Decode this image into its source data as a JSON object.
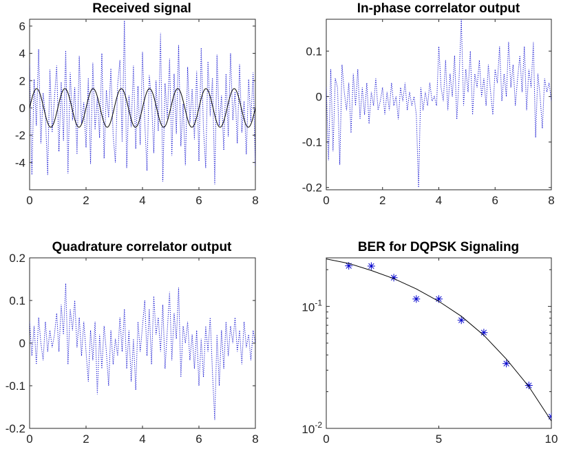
{
  "figure": {
    "background": "#ffffff",
    "trace_color": "#0000cc",
    "curve_color": "#000000"
  },
  "chart_data": [
    {
      "type": "line",
      "title": "Received signal",
      "xlim": [
        0,
        8
      ],
      "ylim": [
        -6,
        6.5
      ],
      "xticks": [
        "0",
        "2",
        "4",
        "6",
        "8"
      ],
      "yticks": [
        "-4",
        "-2",
        "0",
        "2",
        "4",
        "6"
      ],
      "series": [
        {
          "style": "dotted",
          "color": "#0000cc",
          "x": [
            0,
            0.08,
            0.16,
            0.24,
            0.32,
            0.4,
            0.48,
            0.56,
            0.64,
            0.72,
            0.8,
            0.88,
            0.96,
            1.04,
            1.12,
            1.2,
            1.28,
            1.36,
            1.44,
            1.52,
            1.6,
            1.68,
            1.76,
            1.84,
            1.92,
            2,
            2.08,
            2.16,
            2.24,
            2.32,
            2.4,
            2.48,
            2.56,
            2.64,
            2.72,
            2.8,
            2.88,
            2.96,
            3.04,
            3.12,
            3.2,
            3.28,
            3.36,
            3.44,
            3.52,
            3.6,
            3.68,
            3.76,
            3.84,
            3.92,
            4,
            4.08,
            4.16,
            4.24,
            4.32,
            4.4,
            4.48,
            4.56,
            4.64,
            4.72,
            4.8,
            4.88,
            4.96,
            5.04,
            5.12,
            5.2,
            5.28,
            5.36,
            5.44,
            5.52,
            5.6,
            5.68,
            5.76,
            5.84,
            5.92,
            6,
            6.08,
            6.16,
            6.24,
            6.32,
            6.4,
            6.48,
            6.56,
            6.64,
            6.72,
            6.8,
            6.88,
            6.96,
            7.04,
            7.12,
            7.2,
            7.28,
            7.36,
            7.44,
            7.52,
            7.6,
            7.68,
            7.76,
            7.84,
            7.92,
            8
          ],
          "y": [
            3.2,
            -4.9,
            2.1,
            -1.3,
            4.3,
            -2.6,
            1.1,
            -0.5,
            -4.9,
            2.8,
            -1.8,
            0.7,
            3.1,
            -3.2,
            1.9,
            -2.4,
            4.2,
            -4.8,
            2.6,
            -0.9,
            1.5,
            -3.4,
            3.8,
            -1.2,
            0.4,
            -2.9,
            2.2,
            -4.1,
            3.3,
            -1.6,
            0.8,
            -2.2,
            4.0,
            -3.7,
            1.3,
            -0.7,
            2.9,
            -2.0,
            -4.0,
            1.7,
            3.5,
            -2.5,
            6.4,
            -4.4,
            0.9,
            -1.4,
            3.1,
            -3.0,
            1.6,
            -2.7,
            4.1,
            -1.0,
            -4.6,
            2.4,
            0.6,
            -3.3,
            2.0,
            -1.7,
            5.5,
            -5.4,
            1.8,
            -0.8,
            3.6,
            -3.5,
            2.5,
            -1.9,
            4.6,
            -2.8,
            0.3,
            -4.2,
            3.0,
            -1.1,
            1.4,
            -2.3,
            2.7,
            -3.9,
            4.4,
            -1.5,
            -4.4,
            3.4,
            -0.6,
            2.2,
            -5.6,
            3.9,
            -1.3,
            0.9,
            -3.1,
            2.5,
            -2.1,
            4.0,
            -0.9,
            1.2,
            -2.6,
            3.2,
            -1.8,
            0.5,
            -3.4,
            2.1,
            -1.0,
            2.6,
            -4.3
          ]
        },
        {
          "style": "solid",
          "color": "#000000",
          "function": "1.414*sin(2*pi*t)",
          "x_range": [
            0,
            8
          ]
        }
      ]
    },
    {
      "type": "line",
      "title": "In-phase correlator output",
      "xlim": [
        0,
        8
      ],
      "ylim": [
        -0.205,
        0.17
      ],
      "xticks": [
        "0",
        "2",
        "4",
        "6",
        "8"
      ],
      "yticks": [
        "-0.2",
        "-0.1",
        "0",
        "0.1"
      ],
      "series": [
        {
          "style": "dotted",
          "color": "#0000cc",
          "x": [
            0,
            0.08,
            0.16,
            0.24,
            0.32,
            0.4,
            0.48,
            0.56,
            0.64,
            0.72,
            0.8,
            0.88,
            0.96,
            1.04,
            1.12,
            1.2,
            1.28,
            1.36,
            1.44,
            1.52,
            1.6,
            1.68,
            1.76,
            1.84,
            1.92,
            2,
            2.08,
            2.16,
            2.24,
            2.32,
            2.4,
            2.48,
            2.56,
            2.64,
            2.72,
            2.8,
            2.88,
            2.96,
            3.04,
            3.12,
            3.2,
            3.28,
            3.36,
            3.44,
            3.52,
            3.6,
            3.68,
            3.76,
            3.84,
            3.92,
            4,
            4.08,
            4.16,
            4.24,
            4.32,
            4.4,
            4.48,
            4.56,
            4.64,
            4.72,
            4.8,
            4.88,
            4.96,
            5.04,
            5.12,
            5.2,
            5.28,
            5.36,
            5.44,
            5.52,
            5.6,
            5.68,
            5.76,
            5.84,
            5.92,
            6,
            6.08,
            6.16,
            6.24,
            6.32,
            6.4,
            6.48,
            6.56,
            6.64,
            6.72,
            6.8,
            6.88,
            6.96,
            7.04,
            7.12,
            7.2,
            7.28,
            7.36,
            7.44,
            7.52,
            7.6,
            7.68,
            7.76,
            7.84,
            7.92,
            8
          ],
          "y": [
            0.02,
            -0.14,
            0.06,
            -0.12,
            0.04,
            0.02,
            -0.15,
            0.07,
            0.01,
            -0.03,
            0.03,
            -0.08,
            0.05,
            -0.02,
            0.06,
            -0.05,
            0.02,
            -0.04,
            0.03,
            -0.06,
            0.01,
            -0.02,
            0.04,
            -0.03,
            -0.01,
            0.02,
            -0.04,
            0.01,
            -0.03,
            0.03,
            -0.02,
            0.0,
            -0.05,
            0.02,
            -0.01,
            0.03,
            -0.03,
            0.01,
            -0.02,
            0.0,
            -0.04,
            -0.2,
            0.02,
            -0.03,
            0.01,
            -0.02,
            0.03,
            -0.01,
            0.0,
            -0.02,
            0.11,
            0.02,
            -0.01,
            0.08,
            -0.03,
            0.05,
            0.0,
            0.09,
            -0.05,
            0.04,
            0.17,
            -0.02,
            0.06,
            0.01,
            0.1,
            -0.04,
            0.05,
            0.02,
            0.08,
            0.0,
            0.04,
            -0.02,
            0.07,
            0.01,
            -0.04,
            0.06,
            0.03,
            0.11,
            -0.01,
            0.05,
            0.0,
            0.12,
            0.02,
            0.07,
            -0.02,
            0.04,
            0.09,
            0.01,
            0.11,
            -0.03,
            0.06,
            0.02,
            0.12,
            -0.09,
            0.05,
            0.0,
            -0.07,
            0.04,
            0.01,
            0.03,
            -0.01
          ]
        }
      ]
    },
    {
      "type": "line",
      "title": "Quadrature correlator output",
      "xlim": [
        0,
        8
      ],
      "ylim": [
        -0.2,
        0.2
      ],
      "xticks": [
        "0",
        "2",
        "4",
        "6",
        "8"
      ],
      "yticks": [
        "-0.2",
        "-0.1",
        "0",
        "0.1",
        "0.2"
      ],
      "series": [
        {
          "style": "dotted",
          "color": "#0000cc",
          "x": [
            0,
            0.08,
            0.16,
            0.24,
            0.32,
            0.4,
            0.48,
            0.56,
            0.64,
            0.72,
            0.8,
            0.88,
            0.96,
            1.04,
            1.12,
            1.2,
            1.28,
            1.36,
            1.44,
            1.52,
            1.6,
            1.68,
            1.76,
            1.84,
            1.92,
            2,
            2.08,
            2.16,
            2.24,
            2.32,
            2.4,
            2.48,
            2.56,
            2.64,
            2.72,
            2.8,
            2.88,
            2.96,
            3.04,
            3.12,
            3.2,
            3.28,
            3.36,
            3.44,
            3.52,
            3.6,
            3.68,
            3.76,
            3.84,
            3.92,
            4,
            4.08,
            4.16,
            4.24,
            4.32,
            4.4,
            4.48,
            4.56,
            4.64,
            4.72,
            4.8,
            4.88,
            4.96,
            5.04,
            5.12,
            5.2,
            5.28,
            5.36,
            5.44,
            5.52,
            5.6,
            5.68,
            5.76,
            5.84,
            5.92,
            6,
            6.08,
            6.16,
            6.24,
            6.32,
            6.4,
            6.48,
            6.56,
            6.64,
            6.72,
            6.8,
            6.88,
            6.96,
            7.04,
            7.12,
            7.2,
            7.28,
            7.36,
            7.44,
            7.52,
            7.6,
            7.68,
            7.76,
            7.84,
            7.92,
            8
          ],
          "y": [
            0.05,
            -0.03,
            0.04,
            -0.05,
            0.06,
            0.0,
            -0.04,
            0.05,
            -0.02,
            0.03,
            -0.01,
            0.02,
            0.07,
            -0.02,
            0.09,
            0.02,
            0.14,
            -0.05,
            0.08,
            0.03,
            0.1,
            -0.01,
            0.06,
            -0.03,
            0.05,
            -0.02,
            -0.09,
            0.03,
            -0.04,
            0.05,
            -0.12,
            0.02,
            -0.06,
            0.04,
            -0.02,
            -0.1,
            0.03,
            -0.05,
            0.01,
            -0.03,
            0.06,
            -0.02,
            0.08,
            -0.06,
            0.03,
            -0.09,
            0.01,
            -0.11,
            0.05,
            -0.02,
            0.04,
            0.1,
            -0.03,
            0.08,
            -0.05,
            0.11,
            0.02,
            0.06,
            -0.02,
            0.09,
            -0.06,
            0.03,
            0.12,
            -0.04,
            0.07,
            0.01,
            0.13,
            -0.08,
            0.04,
            0.0,
            0.05,
            -0.04,
            0.02,
            -0.06,
            0.03,
            -0.1,
            0.01,
            -0.08,
            0.04,
            -0.02,
            0.06,
            -0.07,
            -0.18,
            0.02,
            -0.1,
            0.03,
            -0.06,
            0.05,
            -0.03,
            0.04,
            0.0,
            0.06,
            -0.02,
            0.03,
            -0.05,
            0.05,
            -0.01,
            0.02,
            -0.04,
            0.03,
            0.0
          ]
        }
      ]
    },
    {
      "type": "line",
      "title": "BER for DQPSK Signaling",
      "yscale": "log",
      "xlim": [
        0,
        10
      ],
      "ylim": [
        0.01,
        0.25
      ],
      "xticks": [
        "0",
        "5",
        "10"
      ],
      "yticks": [
        {
          "base": "10",
          "exp": "-2",
          "value": 0.01
        },
        {
          "base": "10",
          "exp": "-1",
          "value": 0.1
        }
      ],
      "series": [
        {
          "style": "markers",
          "marker": "asterisk",
          "color": "#0000cc",
          "x": [
            1,
            2,
            3,
            4,
            5,
            6,
            7,
            8,
            9,
            10
          ],
          "y": [
            0.215,
            0.214,
            0.172,
            0.115,
            0.115,
            0.077,
            0.061,
            0.034,
            0.0225,
            0.0125
          ]
        },
        {
          "style": "solid",
          "color": "#000000",
          "x": [
            0,
            1,
            2,
            3,
            4,
            5,
            6,
            7,
            8,
            9,
            10
          ],
          "y": [
            0.245,
            0.225,
            0.197,
            0.169,
            0.139,
            0.11,
            0.083,
            0.058,
            0.037,
            0.022,
            0.0115
          ]
        }
      ]
    }
  ]
}
